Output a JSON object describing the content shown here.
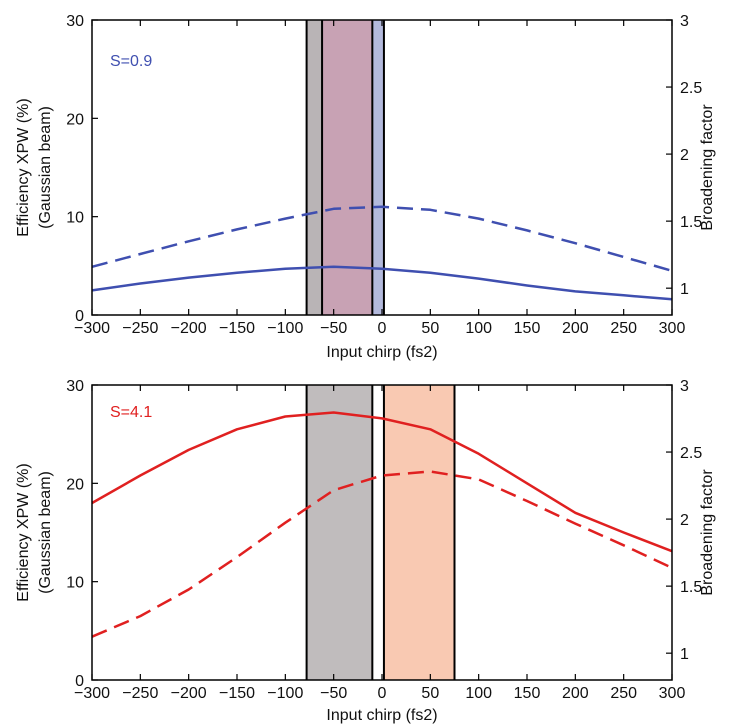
{
  "chart_data": [
    {
      "type": "line",
      "annotation": "S=0.9",
      "xlabel": "Input chirp (fs2)",
      "ylabel_line1": "Efficiency XPW (%)",
      "ylabel_line2": "(Gaussian beam)",
      "y2label": "Broadening factor",
      "xlim": [
        -300,
        300
      ],
      "ylim": [
        0,
        30
      ],
      "y2lim": [
        0.8,
        3
      ],
      "xticks": [
        "-300",
        "-250",
        "-200",
        "-150",
        "-100",
        "-50",
        "0",
        "50",
        "100",
        "150",
        "200",
        "250",
        "300"
      ],
      "yticks": [
        "0",
        "10",
        "20",
        "30"
      ],
      "y2ticks": [
        "1",
        "1.5",
        "2",
        "2.5",
        "3"
      ],
      "color": "#3f4fb0",
      "bands": [
        {
          "x0": -78,
          "x1": -62,
          "color": "#b9b4b6"
        },
        {
          "x0": -62,
          "x1": -10,
          "color": "#c8a2b4"
        },
        {
          "x0": -10,
          "x1": 2,
          "color": "#b3b9dc"
        }
      ],
      "band_edges": [
        -78,
        -62,
        -10,
        2
      ],
      "series": [
        {
          "style": "solid",
          "x": [
            -300,
            -250,
            -200,
            -150,
            -100,
            -50,
            0,
            50,
            100,
            150,
            200,
            250,
            300
          ],
          "y": [
            2.5,
            3.2,
            3.8,
            4.3,
            4.7,
            4.9,
            4.7,
            4.3,
            3.7,
            3.0,
            2.4,
            2.0,
            1.6
          ]
        },
        {
          "style": "dashed",
          "x": [
            -300,
            -250,
            -200,
            -150,
            -100,
            -50,
            0,
            50,
            100,
            150,
            200,
            250,
            300
          ],
          "y": [
            4.9,
            6.2,
            7.5,
            8.7,
            9.8,
            10.8,
            11.0,
            10.7,
            9.8,
            8.6,
            7.3,
            5.9,
            4.5
          ]
        }
      ]
    },
    {
      "type": "line",
      "annotation": "S=4.1",
      "xlabel": "Input chirp (fs2)",
      "ylabel_line1": "Efficiency XPW (%)",
      "ylabel_line2": "(Gaussian beam)",
      "y2label": "Broadening factor",
      "xlim": [
        -300,
        300
      ],
      "ylim": [
        0,
        30
      ],
      "y2lim": [
        0.8,
        3
      ],
      "xticks": [
        "-300",
        "-250",
        "-200",
        "-150",
        "-100",
        "-50",
        "0",
        "50",
        "100",
        "150",
        "200",
        "250",
        "300"
      ],
      "yticks": [
        "0",
        "10",
        "20",
        "30"
      ],
      "y2ticks": [
        "1",
        "1.5",
        "2",
        "2.5",
        "3"
      ],
      "color": "#e02020",
      "bands": [
        {
          "x0": -78,
          "x1": -10,
          "color": "#c0bcbd"
        },
        {
          "x0": 2,
          "x1": 75,
          "color": "#f9c9b2"
        }
      ],
      "band_edges": [
        -78,
        -10,
        2,
        75
      ],
      "series": [
        {
          "style": "solid",
          "x": [
            -300,
            -250,
            -200,
            -150,
            -100,
            -50,
            0,
            50,
            100,
            150,
            200,
            250,
            300
          ],
          "y": [
            18.0,
            20.8,
            23.4,
            25.5,
            26.8,
            27.2,
            26.6,
            25.5,
            23.0,
            20.0,
            17.0,
            15.0,
            13.1
          ]
        },
        {
          "style": "dashed",
          "x": [
            -300,
            -250,
            -200,
            -150,
            -100,
            -50,
            0,
            50,
            100,
            150,
            200,
            250,
            300
          ],
          "y": [
            4.4,
            6.5,
            9.2,
            12.5,
            16.0,
            19.3,
            20.8,
            21.2,
            20.4,
            18.2,
            15.9,
            13.7,
            11.4
          ]
        }
      ]
    }
  ]
}
